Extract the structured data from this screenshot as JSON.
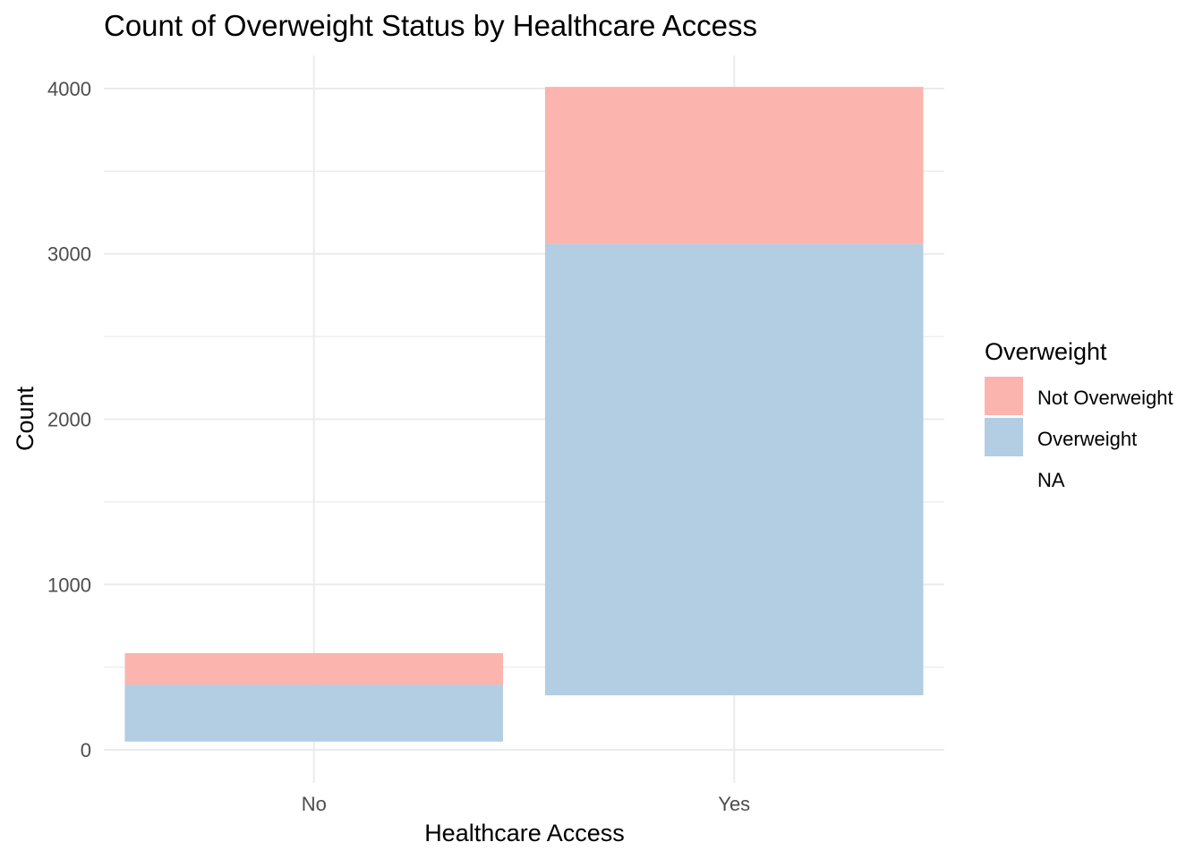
{
  "chart_data": {
    "type": "bar",
    "stacked": true,
    "title": "Count of Overweight Status by Healthcare Access",
    "xlabel": "Healthcare Access",
    "ylabel": "Count",
    "categories": [
      "No",
      "Yes"
    ],
    "series": [
      {
        "name": "Overweight",
        "color": "#b3cde3",
        "start": [
          50,
          330
        ],
        "values": [
          345,
          2730
        ]
      },
      {
        "name": "Not Overweight",
        "color": "#fbb4ae",
        "values": [
          190,
          950
        ]
      }
    ],
    "ylim": [
      -200,
      4200
    ],
    "yticks": [
      0,
      1000,
      2000,
      3000,
      4000
    ],
    "grid": true,
    "legend": {
      "title": "Overweight",
      "position": "right",
      "entries": [
        {
          "label": "Not Overweight",
          "color": "#fbb4ae"
        },
        {
          "label": "Overweight",
          "color": "#b3cde3"
        },
        {
          "label": "NA",
          "color": ""
        }
      ]
    }
  }
}
